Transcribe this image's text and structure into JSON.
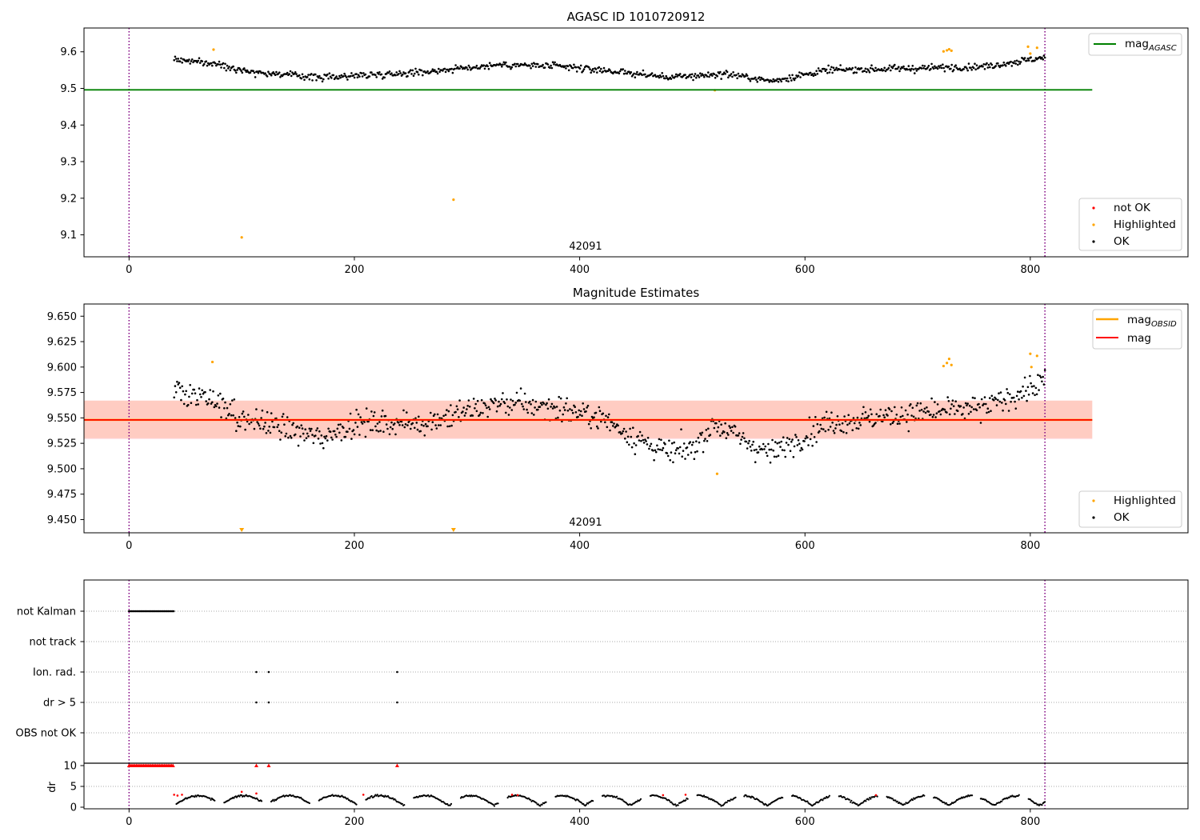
{
  "colors": {
    "ok": "#000000",
    "highlighted": "#ffa500",
    "not_ok": "#ff0000",
    "mag_agasc": "#008000",
    "mag_obsid": "#ffa500",
    "mag": "#ff0000",
    "obs_boundary": "#800080",
    "band_pink": "#ffc0cb",
    "band_orange": "#ffa07a"
  },
  "chart_data": [
    {
      "id": "agasc",
      "type": "scatter",
      "title": "AGASC ID 1010720912",
      "xlim": [
        -40,
        940
      ],
      "ylim": [
        9.04,
        9.665
      ],
      "xticks": [
        0,
        200,
        400,
        600,
        800
      ],
      "yticks": [
        9.1,
        9.2,
        9.3,
        9.4,
        9.5,
        9.6
      ],
      "ytick_labels": [
        "9.1",
        "9.2",
        "9.3",
        "9.4",
        "9.5",
        "9.6"
      ],
      "obs_boundaries": [
        0,
        813
      ],
      "obsid_label": {
        "text": "42091",
        "x": 406
      },
      "hlines": [
        {
          "name": "mag_AGASC",
          "y": 9.496,
          "x_range": [
            -40,
            855
          ]
        }
      ],
      "series": [
        {
          "name": "OK",
          "x_range": [
            40,
            813
          ],
          "trend": [
            [
              40,
              9.58
            ],
            [
              80,
              9.565
            ],
            [
              110,
              9.545
            ],
            [
              170,
              9.53
            ],
            [
              260,
              9.545
            ],
            [
              330,
              9.565
            ],
            [
              380,
              9.56
            ],
            [
              420,
              9.55
            ],
            [
              480,
              9.53
            ],
            [
              530,
              9.54
            ],
            [
              570,
              9.52
            ],
            [
              620,
              9.55
            ],
            [
              700,
              9.555
            ],
            [
              760,
              9.56
            ],
            [
              813,
              9.585
            ]
          ]
        },
        {
          "name": "Highlighted",
          "points": [
            [
              75,
              9.606
            ],
            [
              100,
              9.093
            ],
            [
              288,
              9.196
            ],
            [
              520,
              9.495
            ],
            [
              723,
              9.601
            ],
            [
              726,
              9.604
            ],
            [
              728,
              9.607
            ],
            [
              730,
              9.603
            ],
            [
              798,
              9.614
            ],
            [
              806,
              9.611
            ],
            [
              800,
              9.595
            ]
          ]
        },
        {
          "name": "not OK",
          "points": []
        }
      ],
      "legend": [
        {
          "label": "mag",
          "sub": "AGASC",
          "kind": "line",
          "color": "#008000"
        }
      ],
      "legend2": [
        {
          "label": "not OK",
          "kind": "dot",
          "color": "#ff0000"
        },
        {
          "label": "Highlighted",
          "kind": "dot",
          "color": "#ffa500"
        },
        {
          "label": "OK",
          "kind": "dot",
          "color": "#000000"
        }
      ]
    },
    {
      "id": "mag_estimates",
      "type": "scatter",
      "title": "Magnitude Estimates",
      "xlim": [
        -40,
        940
      ],
      "ylim": [
        9.437,
        9.662
      ],
      "xticks": [
        0,
        200,
        400,
        600,
        800
      ],
      "yticks": [
        9.45,
        9.475,
        9.5,
        9.525,
        9.55,
        9.575,
        9.6,
        9.625,
        9.65
      ],
      "ytick_labels": [
        "9.450",
        "9.475",
        "9.500",
        "9.525",
        "9.550",
        "9.575",
        "9.600",
        "9.625",
        "9.650"
      ],
      "obs_boundaries": [
        0,
        813
      ],
      "obsid_label": {
        "text": "42091",
        "x": 406
      },
      "mag_value": 9.548,
      "bands": [
        {
          "name": "mag_std",
          "y_range": [
            9.529,
            9.567
          ],
          "x_range": [
            -40,
            855
          ],
          "color": "#ffc0cb"
        },
        {
          "name": "mag_obsid_std",
          "y_range": [
            9.53,
            9.567
          ],
          "x_range": [
            -40,
            855
          ],
          "color": "#ffa07a"
        }
      ],
      "hlines": [
        {
          "name": "mag_OBSID",
          "y": 9.548,
          "x_range": [
            -40,
            855
          ],
          "color": "#ffa500"
        },
        {
          "name": "mag",
          "y": 9.548,
          "x_range": [
            -40,
            855
          ],
          "color": "#ff0000"
        }
      ],
      "series": [
        {
          "name": "OK",
          "x_range": [
            40,
            813
          ],
          "trend": [
            [
              40,
              9.575
            ],
            [
              80,
              9.565
            ],
            [
              100,
              9.548
            ],
            [
              120,
              9.545
            ],
            [
              170,
              9.53
            ],
            [
              200,
              9.545
            ],
            [
              260,
              9.545
            ],
            [
              330,
              9.565
            ],
            [
              380,
              9.56
            ],
            [
              420,
              9.55
            ],
            [
              450,
              9.53
            ],
            [
              480,
              9.515
            ],
            [
              500,
              9.52
            ],
            [
              520,
              9.545
            ],
            [
              550,
              9.525
            ],
            [
              570,
              9.515
            ],
            [
              620,
              9.545
            ],
            [
              700,
              9.555
            ],
            [
              760,
              9.56
            ],
            [
              813,
              9.585
            ]
          ]
        },
        {
          "name": "Highlighted",
          "points": [
            [
              74,
              9.605
            ],
            [
              100,
              9.44
            ],
            [
              288,
              9.44
            ],
            [
              522,
              9.495
            ],
            [
              723,
              9.601
            ],
            [
              726,
              9.604
            ],
            [
              728,
              9.608
            ],
            [
              730,
              9.602
            ],
            [
              800,
              9.613
            ],
            [
              806,
              9.611
            ],
            [
              801,
              9.6
            ]
          ]
        }
      ],
      "legend": [
        {
          "label": "mag",
          "sub": "OBSID",
          "kind": "line",
          "color": "#ffa500"
        },
        {
          "label": "mag",
          "sub": "",
          "kind": "line",
          "color": "#ff0000"
        }
      ],
      "legend2": [
        {
          "label": "Highlighted",
          "kind": "dot",
          "color": "#ffa500"
        },
        {
          "label": "OK",
          "kind": "dot",
          "color": "#000000"
        }
      ]
    },
    {
      "id": "flags",
      "type": "scatter",
      "xlim": [
        -40,
        940
      ],
      "categories": [
        "not Kalman",
        "not track",
        "Ion. rad.",
        "dr > 5",
        "OBS not OK"
      ],
      "obs_boundaries": [
        0,
        813
      ],
      "events": {
        "not Kalman": {
          "x_range": [
            0,
            40
          ]
        },
        "not track": {
          "x_range": null
        },
        "Ion. rad.": {
          "points": [
            113,
            124,
            238
          ]
        },
        "dr > 5": {
          "points": [
            113,
            124,
            238
          ]
        },
        "OBS not OK": {
          "x_range": null
        }
      }
    },
    {
      "id": "dr",
      "type": "scatter",
      "ylabel": "dr",
      "xlim": [
        -40,
        940
      ],
      "ylim": [
        0,
        10
      ],
      "xticks": [
        0,
        200,
        400,
        600,
        800
      ],
      "xtick_labels": [
        "0",
        "200",
        "400",
        "600",
        "800"
      ],
      "yticks": [
        0,
        5,
        10
      ],
      "ytick_labels": [
        "0",
        "5",
        "10"
      ],
      "obs_boundaries": [
        0,
        813
      ],
      "capped_points": {
        "y": 10,
        "x_range": [
          0,
          40
        ],
        "extra": [
          113,
          124,
          238
        ]
      },
      "red_points": [
        [
          40,
          3.0
        ],
        [
          43,
          2.8
        ],
        [
          47,
          3.0
        ],
        [
          100,
          3.7
        ],
        [
          113,
          3.3
        ],
        [
          208,
          3.0
        ],
        [
          340,
          3.0
        ],
        [
          345,
          2.9
        ],
        [
          474,
          2.9
        ],
        [
          494,
          3.0
        ],
        [
          663,
          2.9
        ]
      ]
    }
  ]
}
